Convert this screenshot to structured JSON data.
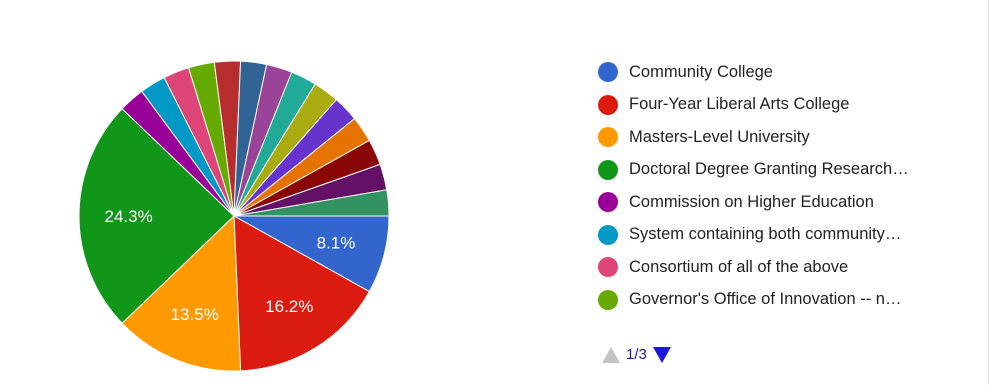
{
  "chart_data": {
    "type": "pie",
    "slices": [
      {
        "value": 8.1,
        "color": "#3366cc",
        "label": "8.1%"
      },
      {
        "value": 16.2,
        "color": "#dc1b10",
        "label": "16.2%"
      },
      {
        "value": 13.5,
        "color": "#ff9900",
        "label": "13.5%"
      },
      {
        "value": 24.3,
        "color": "#109618",
        "label": "24.3%"
      },
      {
        "value": 2.7,
        "color": "#990099",
        "label": ""
      },
      {
        "value": 2.7,
        "color": "#0099c6",
        "label": ""
      },
      {
        "value": 2.7,
        "color": "#dd4477",
        "label": ""
      },
      {
        "value": 2.7,
        "color": "#66aa00",
        "label": ""
      },
      {
        "value": 2.7,
        "color": "#b82e2e",
        "label": ""
      },
      {
        "value": 2.7,
        "color": "#316395",
        "label": ""
      },
      {
        "value": 2.7,
        "color": "#994499",
        "label": ""
      },
      {
        "value": 2.7,
        "color": "#22aa99",
        "label": ""
      },
      {
        "value": 2.7,
        "color": "#aaaa11",
        "label": ""
      },
      {
        "value": 2.7,
        "color": "#6633cc",
        "label": ""
      },
      {
        "value": 2.7,
        "color": "#e67300",
        "label": ""
      },
      {
        "value": 2.7,
        "color": "#8b0707",
        "label": ""
      },
      {
        "value": 2.7,
        "color": "#651067",
        "label": ""
      },
      {
        "value": 2.7,
        "color": "#329262",
        "label": ""
      }
    ],
    "legend_position": "right"
  },
  "legend": {
    "items": [
      {
        "label": "Community College",
        "color": "#3366cc"
      },
      {
        "label": "Four-Year Liberal Arts College",
        "color": "#dc1b10"
      },
      {
        "label": "Masters-Level University",
        "color": "#ff9900"
      },
      {
        "label": "Doctoral Degree Granting Research…",
        "color": "#109618"
      },
      {
        "label": "Commission on Higher Education",
        "color": "#990099"
      },
      {
        "label": "System containing both community…",
        "color": "#0099c6"
      },
      {
        "label": "Consortium of all of the above",
        "color": "#dd4477"
      },
      {
        "label": "Governor's Office of Innovation -- n…",
        "color": "#66aa00"
      }
    ]
  },
  "pager": {
    "text": "1/3",
    "up_icon": "triangle-up-icon",
    "down_icon": "triangle-down-icon"
  }
}
